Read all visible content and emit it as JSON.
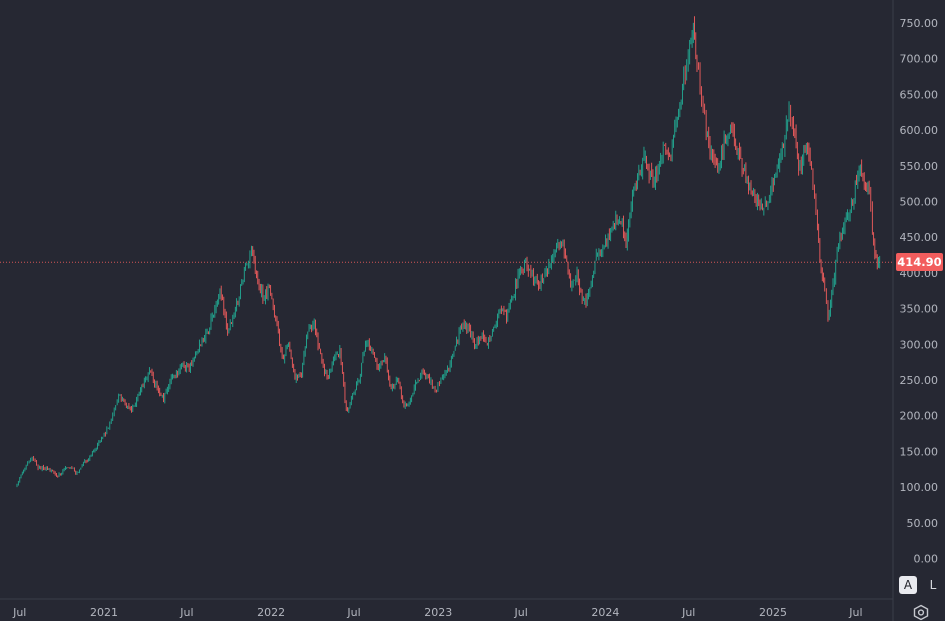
{
  "chart_data": {
    "type": "candlestick",
    "xlabel": "",
    "ylabel": "",
    "ylim": [
      0,
      750
    ],
    "y_ticks": [
      "750.00",
      "700.00",
      "650.00",
      "600.00",
      "550.00",
      "500.00",
      "450.00",
      "400.00",
      "350.00",
      "300.00",
      "250.00",
      "200.00",
      "150.00",
      "100.00",
      "50.00",
      "0.00"
    ],
    "x_ticks": [
      "Jul",
      "2021",
      "Jul",
      "2022",
      "Jul",
      "2023",
      "Jul",
      "2024",
      "Jul",
      "2025",
      "Jul"
    ],
    "last_price": "414.90",
    "series": [
      {
        "path": [
          [
            "2020-06-22",
            100
          ],
          [
            "2020-07-01",
            113
          ],
          [
            "2020-07-15",
            130
          ],
          [
            "2020-07-28",
            143
          ],
          [
            "2020-08-10",
            128
          ],
          [
            "2020-08-25",
            126
          ],
          [
            "2020-09-08",
            122
          ],
          [
            "2020-09-22",
            116
          ],
          [
            "2020-10-06",
            125
          ],
          [
            "2020-10-20",
            129
          ],
          [
            "2020-11-03",
            119
          ],
          [
            "2020-11-17",
            134
          ],
          [
            "2020-12-01",
            141
          ],
          [
            "2020-12-15",
            155
          ],
          [
            "2021-01-04",
            175
          ],
          [
            "2021-01-20",
            200
          ],
          [
            "2021-02-02",
            227
          ],
          [
            "2021-02-16",
            218
          ],
          [
            "2021-03-02",
            206
          ],
          [
            "2021-03-16",
            225
          ],
          [
            "2021-03-30",
            250
          ],
          [
            "2021-04-13",
            262
          ],
          [
            "2021-04-27",
            238
          ],
          [
            "2021-05-11",
            224
          ],
          [
            "2021-05-25",
            248
          ],
          [
            "2021-06-08",
            261
          ],
          [
            "2021-06-22",
            270
          ],
          [
            "2021-07-06",
            268
          ],
          [
            "2021-07-20",
            290
          ],
          [
            "2021-08-03",
            302
          ],
          [
            "2021-08-17",
            320
          ],
          [
            "2021-08-31",
            350
          ],
          [
            "2021-09-14",
            372
          ],
          [
            "2021-09-28",
            318
          ],
          [
            "2021-10-12",
            342
          ],
          [
            "2021-10-26",
            378
          ],
          [
            "2021-11-09",
            412
          ],
          [
            "2021-11-19",
            432
          ],
          [
            "2021-11-30",
            395
          ],
          [
            "2021-12-14",
            368
          ],
          [
            "2021-12-28",
            378
          ],
          [
            "2022-01-11",
            336
          ],
          [
            "2022-01-25",
            280
          ],
          [
            "2022-02-08",
            300
          ],
          [
            "2022-02-22",
            250
          ],
          [
            "2022-03-08",
            260
          ],
          [
            "2022-03-22",
            318
          ],
          [
            "2022-04-05",
            328
          ],
          [
            "2022-04-19",
            282
          ],
          [
            "2022-05-03",
            252
          ],
          [
            "2022-05-17",
            276
          ],
          [
            "2022-05-31",
            292
          ],
          [
            "2022-06-14",
            205
          ],
          [
            "2022-06-28",
            228
          ],
          [
            "2022-07-12",
            250
          ],
          [
            "2022-07-26",
            305
          ],
          [
            "2022-08-09",
            290
          ],
          [
            "2022-08-23",
            265
          ],
          [
            "2022-09-06",
            282
          ],
          [
            "2022-09-20",
            236
          ],
          [
            "2022-10-04",
            255
          ],
          [
            "2022-10-18",
            213
          ],
          [
            "2022-11-01",
            220
          ],
          [
            "2022-11-15",
            248
          ],
          [
            "2022-11-29",
            260
          ],
          [
            "2022-12-13",
            250
          ],
          [
            "2022-12-28",
            236
          ],
          [
            "2023-01-10",
            255
          ],
          [
            "2023-01-24",
            268
          ],
          [
            "2023-02-07",
            300
          ],
          [
            "2023-02-21",
            326
          ],
          [
            "2023-03-07",
            322
          ],
          [
            "2023-03-21",
            300
          ],
          [
            "2023-04-04",
            310
          ],
          [
            "2023-04-18",
            302
          ],
          [
            "2023-05-02",
            324
          ],
          [
            "2023-05-16",
            348
          ],
          [
            "2023-05-30",
            339
          ],
          [
            "2023-06-13",
            366
          ],
          [
            "2023-06-27",
            400
          ],
          [
            "2023-07-11",
            412
          ],
          [
            "2023-07-25",
            395
          ],
          [
            "2023-08-08",
            380
          ],
          [
            "2023-08-22",
            395
          ],
          [
            "2023-09-05",
            420
          ],
          [
            "2023-09-19",
            445
          ],
          [
            "2023-10-03",
            428
          ],
          [
            "2023-10-17",
            383
          ],
          [
            "2023-10-31",
            395
          ],
          [
            "2023-11-14",
            358
          ],
          [
            "2023-11-28",
            373
          ],
          [
            "2023-12-12",
            420
          ],
          [
            "2024-01-04",
            445
          ],
          [
            "2024-01-18",
            468
          ],
          [
            "2024-02-01",
            478
          ],
          [
            "2024-02-15",
            440
          ],
          [
            "2024-02-29",
            508
          ],
          [
            "2024-03-14",
            540
          ],
          [
            "2024-03-28",
            562
          ],
          [
            "2024-04-11",
            530
          ],
          [
            "2024-04-25",
            540
          ],
          [
            "2024-05-09",
            575
          ],
          [
            "2024-05-23",
            560
          ],
          [
            "2024-06-06",
            620
          ],
          [
            "2024-06-20",
            672
          ],
          [
            "2024-07-03",
            712
          ],
          [
            "2024-07-11",
            742
          ],
          [
            "2024-07-19",
            690
          ],
          [
            "2024-07-29",
            650
          ],
          [
            "2024-08-08",
            600
          ],
          [
            "2024-08-22",
            560
          ],
          [
            "2024-09-05",
            548
          ],
          [
            "2024-09-19",
            590
          ],
          [
            "2024-10-03",
            600
          ],
          [
            "2024-10-17",
            570
          ],
          [
            "2024-10-31",
            540
          ],
          [
            "2024-11-14",
            510
          ],
          [
            "2024-11-28",
            500
          ],
          [
            "2024-12-12",
            490
          ],
          [
            "2024-12-27",
            510
          ],
          [
            "2025-01-10",
            545
          ],
          [
            "2025-01-24",
            580
          ],
          [
            "2025-02-05",
            622
          ],
          [
            "2025-02-12",
            615
          ],
          [
            "2025-02-26",
            540
          ],
          [
            "2025-03-12",
            576
          ],
          [
            "2025-03-26",
            555
          ],
          [
            "2025-04-08",
            462
          ],
          [
            "2025-04-16",
            408
          ],
          [
            "2025-04-24",
            378
          ],
          [
            "2025-05-01",
            335
          ],
          [
            "2025-05-12",
            385
          ],
          [
            "2025-05-27",
            452
          ],
          [
            "2025-06-10",
            480
          ],
          [
            "2025-06-24",
            500
          ],
          [
            "2025-07-08",
            548
          ],
          [
            "2025-07-22",
            525
          ],
          [
            "2025-07-30",
            512
          ],
          [
            "2025-08-06",
            455
          ],
          [
            "2025-08-14",
            420
          ],
          [
            "2025-08-22",
            414.9
          ]
        ]
      }
    ],
    "colors": {
      "background": "#262833",
      "up": "#22ab94",
      "down": "#f25d5d",
      "price_line": "#f25d5d",
      "axis_border": "#3b3e4a",
      "text": "#b3b6bf"
    }
  }
}
